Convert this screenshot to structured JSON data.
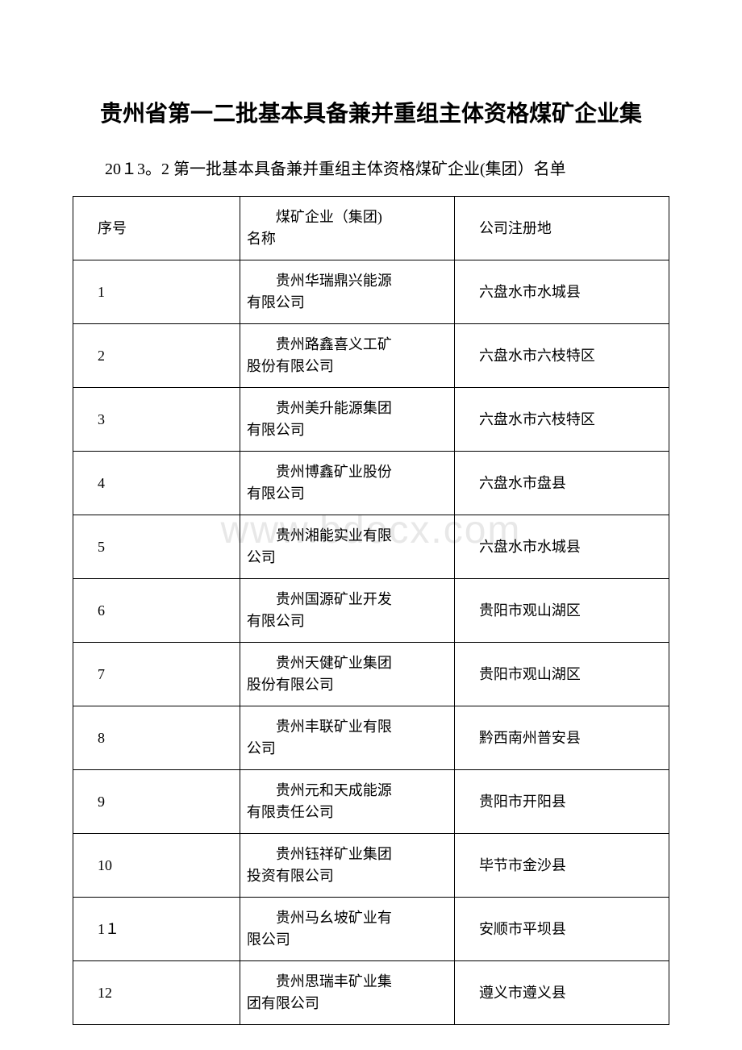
{
  "title": "贵州省第一二批基本具备兼并重组主体资格煤矿企业集",
  "subtitle": "20１3。2 第一批基本具备兼并重组主体资格煤矿企业(集团）名单",
  "watermark": "www.bdocx.com",
  "table": {
    "headers": {
      "col1": "序号",
      "col2_line1": "煤矿企业（集团)",
      "col2_line2": "名称",
      "col3": "公司注册地"
    },
    "rows": [
      {
        "num": "1",
        "name_line1": "贵州华瑞鼎兴能源",
        "name_line2": "有限公司",
        "location": "六盘水市水城县"
      },
      {
        "num": "2",
        "name_line1": "贵州路鑫喜义工矿",
        "name_line2": "股份有限公司",
        "location": "六盘水市六枝特区"
      },
      {
        "num": "3",
        "name_line1": "贵州美升能源集团",
        "name_line2": "有限公司",
        "location": "六盘水市六枝特区"
      },
      {
        "num": "4",
        "name_line1": "贵州博鑫矿业股份",
        "name_line2": "有限公司",
        "location": "六盘水市盘县"
      },
      {
        "num": "5",
        "name_line1": "贵州湘能实业有限",
        "name_line2": "公司",
        "location": "六盘水市水城县"
      },
      {
        "num": "6",
        "name_line1": "贵州国源矿业开发",
        "name_line2": "有限公司",
        "location": "贵阳市观山湖区"
      },
      {
        "num": "7",
        "name_line1": "贵州天健矿业集团",
        "name_line2": "股份有限公司",
        "location": "贵阳市观山湖区"
      },
      {
        "num": "8",
        "name_line1": "贵州丰联矿业有限",
        "name_line2": "公司",
        "location": "黔西南州普安县"
      },
      {
        "num": "9",
        "name_line1": "贵州元和天成能源",
        "name_line2": "有限责任公司",
        "location": "贵阳市开阳县"
      },
      {
        "num": "10",
        "name_line1": "贵州钰祥矿业集团",
        "name_line2": "投资有限公司",
        "location": "毕节市金沙县"
      },
      {
        "num": "1１",
        "name_line1": "贵州马幺坡矿业有",
        "name_line2": "限公司",
        "location": "安顺市平坝县"
      },
      {
        "num": "12",
        "name_line1": "贵州思瑞丰矿业集",
        "name_line2": "团有限公司",
        "location": "遵义市遵义县"
      }
    ]
  }
}
